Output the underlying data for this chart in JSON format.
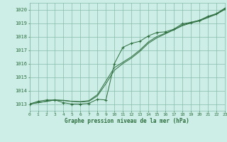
{
  "title": "Graphe pression niveau de la mer (hPa)",
  "bg_color": "#cceee6",
  "grid_color": "#88bbaa",
  "line_color": "#2d6e3e",
  "xlim": [
    0,
    23
  ],
  "ylim": [
    1012.5,
    1020.5
  ],
  "xticks": [
    0,
    1,
    2,
    3,
    4,
    5,
    6,
    7,
    8,
    9,
    10,
    11,
    12,
    13,
    14,
    15,
    16,
    17,
    18,
    19,
    20,
    21,
    22,
    23
  ],
  "yticks": [
    1013,
    1014,
    1015,
    1016,
    1017,
    1018,
    1019,
    1020
  ],
  "marker_x": [
    0,
    1,
    2,
    3,
    4,
    5,
    6,
    7,
    8,
    9,
    10,
    11,
    12,
    13,
    14,
    15,
    16,
    17,
    18,
    19,
    20,
    21,
    22,
    23
  ],
  "marker_y": [
    1013.0,
    1013.2,
    1013.3,
    1013.3,
    1013.1,
    1013.0,
    1013.0,
    1013.05,
    1013.35,
    1013.3,
    1016.0,
    1017.2,
    1017.5,
    1017.65,
    1018.05,
    1018.3,
    1018.35,
    1018.55,
    1018.95,
    1019.05,
    1019.2,
    1019.5,
    1019.7,
    1020.1
  ],
  "smooth1_x": [
    0,
    1,
    2,
    3,
    4,
    5,
    6,
    7,
    8,
    9,
    10,
    11,
    12,
    13,
    14,
    15,
    16,
    17,
    18,
    19,
    20,
    21,
    22,
    23
  ],
  "smooth1_y": [
    1013.0,
    1013.1,
    1013.2,
    1013.3,
    1013.25,
    1013.2,
    1013.15,
    1013.2,
    1013.6,
    1014.5,
    1015.5,
    1016.0,
    1016.4,
    1016.9,
    1017.5,
    1017.9,
    1018.2,
    1018.5,
    1018.8,
    1019.0,
    1019.15,
    1019.4,
    1019.65,
    1020.0
  ],
  "smooth2_x": [
    0,
    1,
    2,
    3,
    4,
    5,
    6,
    7,
    8,
    9,
    10,
    11,
    12,
    13,
    14,
    15,
    16,
    17,
    18,
    19,
    20,
    21,
    22,
    23
  ],
  "smooth2_y": [
    1013.0,
    1013.1,
    1013.2,
    1013.3,
    1013.28,
    1013.2,
    1013.18,
    1013.25,
    1013.7,
    1014.7,
    1015.7,
    1016.1,
    1016.5,
    1017.0,
    1017.6,
    1018.0,
    1018.25,
    1018.5,
    1018.85,
    1019.05,
    1019.2,
    1019.45,
    1019.65,
    1020.05
  ]
}
